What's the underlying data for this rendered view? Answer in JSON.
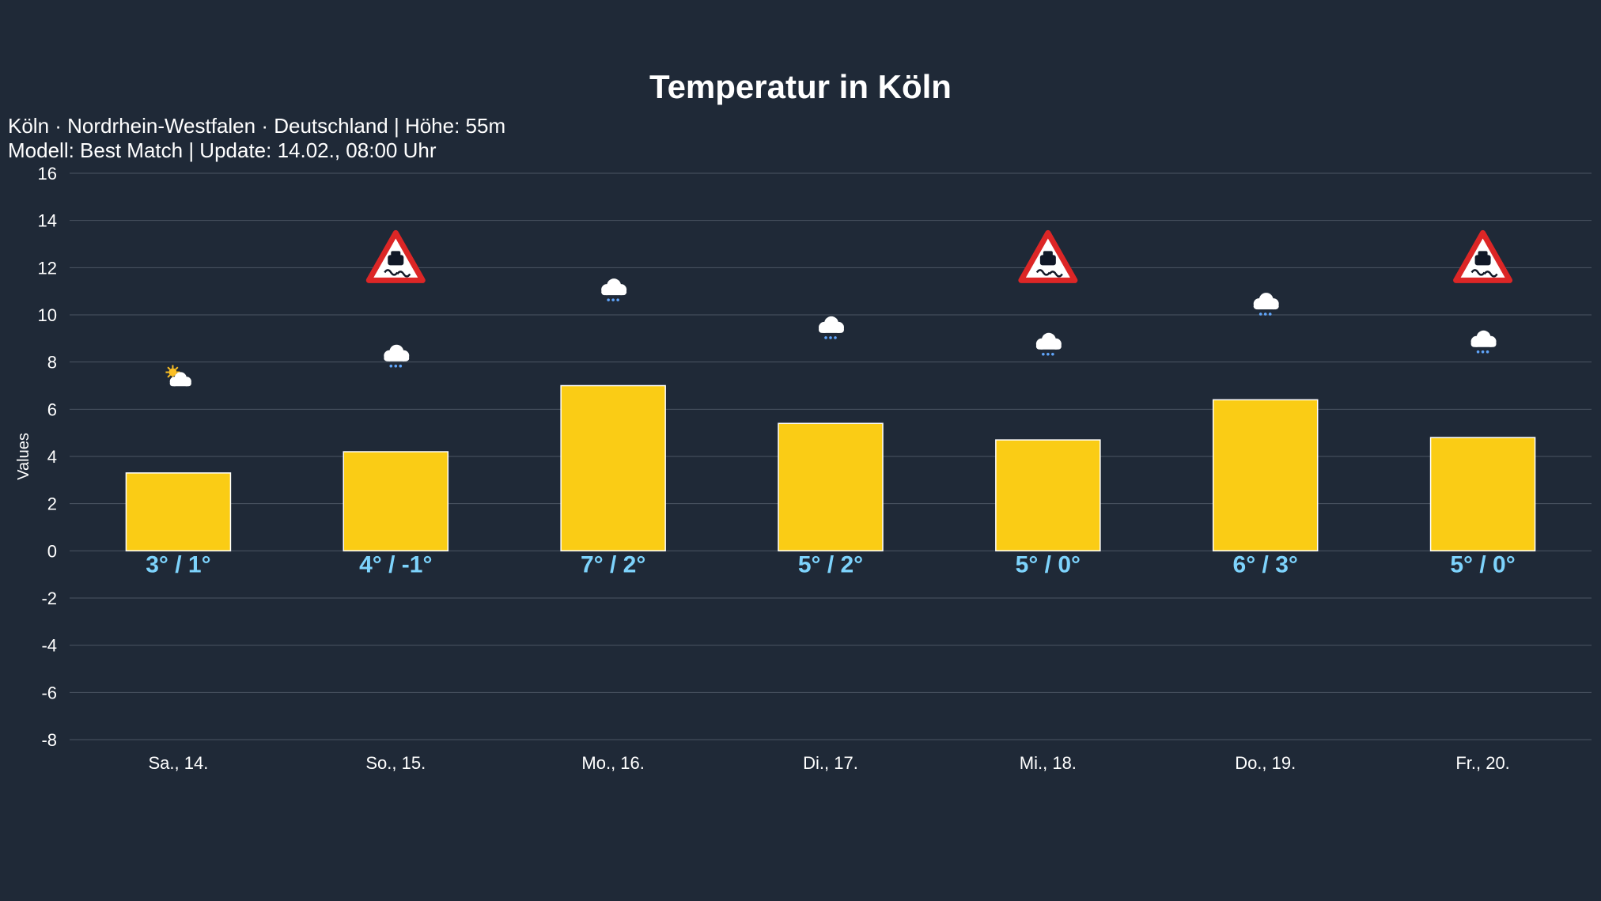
{
  "chart_data": {
    "type": "bar",
    "title": "Temperatur in Köln",
    "subtitle_lines": [
      "Köln · Nordrhein-Westfalen · Deutschland | Höhe: 55m",
      "Modell: Best Match | Update: 14.02., 08:00 Uhr"
    ],
    "xlabel": "",
    "ylabel": "Values",
    "ylim": [
      -8,
      16
    ],
    "yticks": [
      16,
      14,
      12,
      10,
      8,
      6,
      4,
      2,
      0,
      -2,
      -4,
      -6,
      -8
    ],
    "grid": true,
    "categories": [
      "Sa., 14.",
      "So., 15.",
      "Mo., 16.",
      "Di., 17.",
      "Mi., 18.",
      "Do., 19.",
      "Fr., 20."
    ],
    "values": [
      3.3,
      4.2,
      7.0,
      5.4,
      4.7,
      6.4,
      4.8
    ],
    "labels": [
      "3° / 1°",
      "4° / -1°",
      "7° / 2°",
      "5° / 2°",
      "5° / 0°",
      "6° / 3°",
      "5° / 0°"
    ],
    "weather_icons": [
      "partly-cloudy-icon",
      "snow-cloud-icon",
      "snow-cloud-icon",
      "snow-cloud-icon",
      "snow-cloud-icon",
      "snow-cloud-icon",
      "snow-cloud-icon"
    ],
    "icon_values": [
      7.3,
      8.2,
      11.0,
      9.4,
      8.7,
      10.4,
      8.8
    ],
    "warnings": [
      false,
      true,
      false,
      false,
      true,
      false,
      true
    ],
    "warning_icon": "slippery-road-warning-icon",
    "warning_value": 12.4,
    "colors": {
      "bar": "#facc15",
      "bar_border": "#ffffff",
      "label": "#7dd3fc",
      "grid": "#4b5563",
      "background": "#1f2937"
    }
  }
}
